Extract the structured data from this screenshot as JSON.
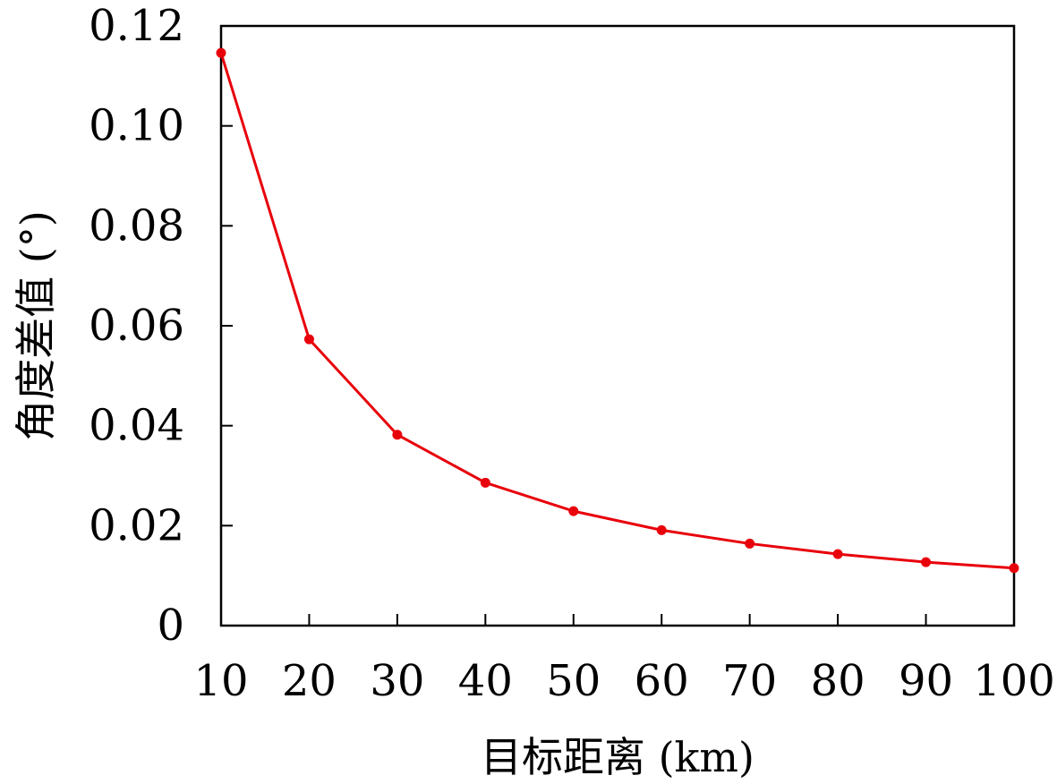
{
  "chart_data": {
    "type": "line",
    "x": [
      10,
      20,
      30,
      40,
      50,
      60,
      70,
      80,
      90,
      100
    ],
    "series": [
      {
        "values": [
          0.1146,
          0.0573,
          0.0382,
          0.0286,
          0.0229,
          0.0191,
          0.0164,
          0.0143,
          0.0127,
          0.0115
        ],
        "color": "#e8000b"
      }
    ],
    "xlabel": "目标距离 (km)",
    "ylabel": "角度差值 (°)",
    "xlim": [
      10,
      100
    ],
    "ylim": [
      0,
      0.12
    ],
    "xticks": [
      "10",
      "20",
      "30",
      "40",
      "50",
      "60",
      "70",
      "80",
      "90",
      "100"
    ],
    "yticks": [
      "0",
      "0.02",
      "0.04",
      "0.06",
      "0.08",
      "0.10",
      "0.12"
    ],
    "grid": false,
    "legend": "none",
    "frame_color": "#000000"
  }
}
